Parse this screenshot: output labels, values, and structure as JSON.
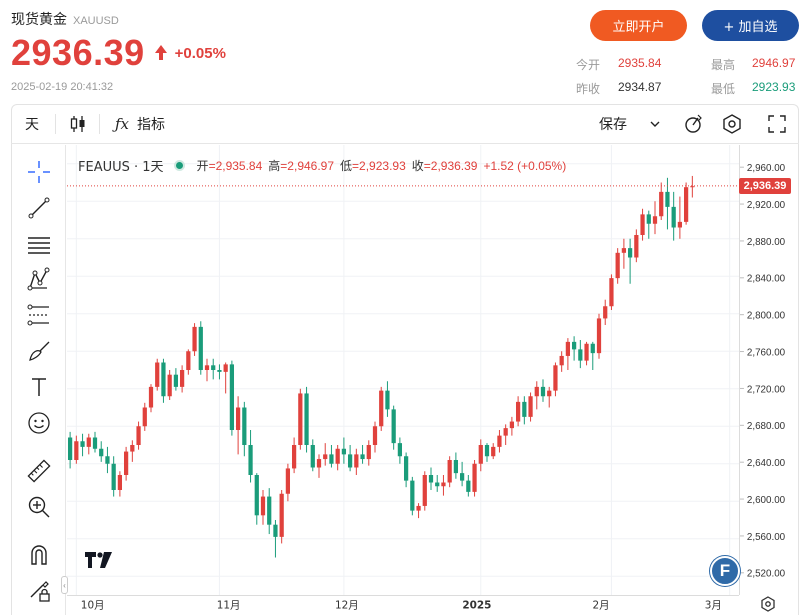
{
  "header": {
    "title": "现货黄金",
    "symbol": "XAUUSD",
    "price": "2936.39",
    "change_pct": "+0.05%",
    "timestamp": "2025-02-19 20:41:32",
    "btn_open": "立即开户",
    "btn_watch": "+ 加自选",
    "stats": {
      "open_label": "今开",
      "open_value": "2935.84",
      "high_label": "最高",
      "high_value": "2946.97",
      "prev_label": "昨收",
      "prev_value": "2934.87",
      "low_label": "最低",
      "low_value": "2923.93"
    }
  },
  "toolbar": {
    "interval": "天",
    "indicators": "指标",
    "save": "保存"
  },
  "sidebar_tools": [
    "crosshair-icon",
    "trend-line-icon",
    "horizontal-lines-icon",
    "pattern-icon",
    "fib-icon",
    "brush-icon",
    "text-icon",
    "emoji-icon",
    "ruler-icon",
    "zoom-in-icon",
    "magnet-icon",
    "lock-pencil-icon"
  ],
  "legend": {
    "symbol": "FEAUUS · 1天",
    "open_label": "开",
    "open": "2,935.84",
    "high_label": "高",
    "high": "2,946.97",
    "low_label": "低",
    "low": "2,923.93",
    "close_label": "收",
    "close": "2,936.39",
    "change": "+1.52 (+0.05%)"
  },
  "colors": {
    "up": "#e0413c",
    "down": "#1a9c7a",
    "accent_orange": "#f05a22",
    "accent_blue": "#1e4fa0"
  },
  "chart_data": {
    "type": "candlestick",
    "y_ticks": [
      2520,
      2560,
      2600,
      2640,
      2680,
      2720,
      2760,
      2800,
      2840,
      2880,
      2920,
      2960
    ],
    "y_tick_labels": [
      "2,520.00",
      "2,560.00",
      "2,600.00",
      "2,640.00",
      "2,680.00",
      "2,720.00",
      "2,760.00",
      "2,800.00",
      "2,840.00",
      "2,880.00",
      "2,920.00",
      "2,960.00"
    ],
    "ylim": [
      2500,
      2980
    ],
    "x_labels": [
      {
        "label": "10月",
        "index": 1
      },
      {
        "label": "11月",
        "index": 24
      },
      {
        "label": "12月",
        "index": 44
      },
      {
        "label": "2025",
        "index": 66
      },
      {
        "label": "2月",
        "index": 87
      },
      {
        "label": "3月",
        "index": 106
      }
    ],
    "n_slots": 108,
    "last_price_label": "2,936.39",
    "last_price": 2936.39,
    "grid": true,
    "candles": [
      [
        2668,
        2674,
        2635,
        2644
      ],
      [
        2644,
        2670,
        2640,
        2664
      ],
      [
        2664,
        2672,
        2648,
        2658
      ],
      [
        2658,
        2672,
        2650,
        2668
      ],
      [
        2668,
        2674,
        2652,
        2656
      ],
      [
        2656,
        2664,
        2642,
        2648
      ],
      [
        2648,
        2658,
        2630,
        2640
      ],
      [
        2640,
        2648,
        2605,
        2612
      ],
      [
        2612,
        2632,
        2605,
        2628
      ],
      [
        2628,
        2658,
        2622,
        2653
      ],
      [
        2653,
        2665,
        2642,
        2660
      ],
      [
        2660,
        2685,
        2655,
        2680
      ],
      [
        2680,
        2705,
        2675,
        2700
      ],
      [
        2700,
        2725,
        2695,
        2722
      ],
      [
        2722,
        2752,
        2718,
        2748
      ],
      [
        2748,
        2752,
        2705,
        2712
      ],
      [
        2712,
        2740,
        2708,
        2735
      ],
      [
        2735,
        2742,
        2718,
        2722
      ],
      [
        2722,
        2745,
        2716,
        2740
      ],
      [
        2740,
        2762,
        2735,
        2760
      ],
      [
        2760,
        2790,
        2755,
        2786
      ],
      [
        2786,
        2792,
        2735,
        2740
      ],
      [
        2740,
        2752,
        2728,
        2745
      ],
      [
        2745,
        2752,
        2730,
        2740
      ],
      [
        2740,
        2746,
        2730,
        2738
      ],
      [
        2738,
        2748,
        2715,
        2746
      ],
      [
        2746,
        2750,
        2670,
        2676
      ],
      [
        2676,
        2712,
        2650,
        2700
      ],
      [
        2700,
        2706,
        2648,
        2660
      ],
      [
        2660,
        2676,
        2620,
        2628
      ],
      [
        2628,
        2630,
        2575,
        2585
      ],
      [
        2585,
        2612,
        2575,
        2605
      ],
      [
        2605,
        2614,
        2565,
        2575
      ],
      [
        2575,
        2580,
        2540,
        2562
      ],
      [
        2562,
        2612,
        2555,
        2608
      ],
      [
        2608,
        2640,
        2600,
        2635
      ],
      [
        2635,
        2668,
        2630,
        2660
      ],
      [
        2660,
        2720,
        2655,
        2715
      ],
      [
        2715,
        2722,
        2652,
        2660
      ],
      [
        2660,
        2666,
        2632,
        2636
      ],
      [
        2636,
        2650,
        2625,
        2645
      ],
      [
        2645,
        2662,
        2638,
        2650
      ],
      [
        2650,
        2660,
        2636,
        2640
      ],
      [
        2640,
        2660,
        2633,
        2656
      ],
      [
        2656,
        2668,
        2640,
        2650
      ],
      [
        2650,
        2660,
        2632,
        2636
      ],
      [
        2636,
        2656,
        2628,
        2650
      ],
      [
        2650,
        2660,
        2640,
        2645
      ],
      [
        2645,
        2665,
        2638,
        2660
      ],
      [
        2660,
        2685,
        2652,
        2680
      ],
      [
        2680,
        2722,
        2675,
        2718
      ],
      [
        2718,
        2728,
        2690,
        2698
      ],
      [
        2698,
        2702,
        2655,
        2662
      ],
      [
        2662,
        2668,
        2640,
        2648
      ],
      [
        2648,
        2652,
        2615,
        2622
      ],
      [
        2622,
        2626,
        2585,
        2590
      ],
      [
        2590,
        2598,
        2582,
        2595
      ],
      [
        2595,
        2632,
        2590,
        2628
      ],
      [
        2628,
        2636,
        2612,
        2620
      ],
      [
        2620,
        2628,
        2610,
        2616
      ],
      [
        2616,
        2628,
        2606,
        2620
      ],
      [
        2620,
        2648,
        2615,
        2644
      ],
      [
        2644,
        2652,
        2624,
        2630
      ],
      [
        2630,
        2642,
        2616,
        2622
      ],
      [
        2622,
        2628,
        2605,
        2610
      ],
      [
        2610,
        2644,
        2605,
        2640
      ],
      [
        2640,
        2666,
        2632,
        2660
      ],
      [
        2660,
        2662,
        2642,
        2648
      ],
      [
        2648,
        2662,
        2645,
        2658
      ],
      [
        2658,
        2676,
        2652,
        2670
      ],
      [
        2670,
        2682,
        2660,
        2678
      ],
      [
        2678,
        2690,
        2670,
        2685
      ],
      [
        2685,
        2712,
        2680,
        2706
      ],
      [
        2706,
        2712,
        2682,
        2690
      ],
      [
        2690,
        2716,
        2685,
        2712
      ],
      [
        2712,
        2728,
        2698,
        2722
      ],
      [
        2722,
        2730,
        2706,
        2712
      ],
      [
        2712,
        2722,
        2700,
        2718
      ],
      [
        2718,
        2748,
        2712,
        2745
      ],
      [
        2745,
        2760,
        2738,
        2755
      ],
      [
        2755,
        2774,
        2740,
        2770
      ],
      [
        2770,
        2776,
        2750,
        2762
      ],
      [
        2762,
        2772,
        2742,
        2750
      ],
      [
        2750,
        2770,
        2745,
        2768
      ],
      [
        2768,
        2770,
        2740,
        2758
      ],
      [
        2758,
        2800,
        2752,
        2795
      ],
      [
        2795,
        2815,
        2788,
        2808
      ],
      [
        2808,
        2842,
        2804,
        2838
      ],
      [
        2838,
        2870,
        2832,
        2865
      ],
      [
        2865,
        2880,
        2848,
        2870
      ],
      [
        2870,
        2880,
        2832,
        2860
      ],
      [
        2860,
        2890,
        2855,
        2884
      ],
      [
        2884,
        2912,
        2878,
        2906
      ],
      [
        2906,
        2910,
        2880,
        2896
      ],
      [
        2896,
        2920,
        2885,
        2904
      ],
      [
        2904,
        2940,
        2900,
        2930
      ],
      [
        2930,
        2945,
        2890,
        2914
      ],
      [
        2914,
        2930,
        2878,
        2892
      ],
      [
        2892,
        2925,
        2880,
        2898
      ],
      [
        2898,
        2940,
        2895,
        2935
      ],
      [
        2935,
        2947,
        2924,
        2936
      ]
    ]
  }
}
